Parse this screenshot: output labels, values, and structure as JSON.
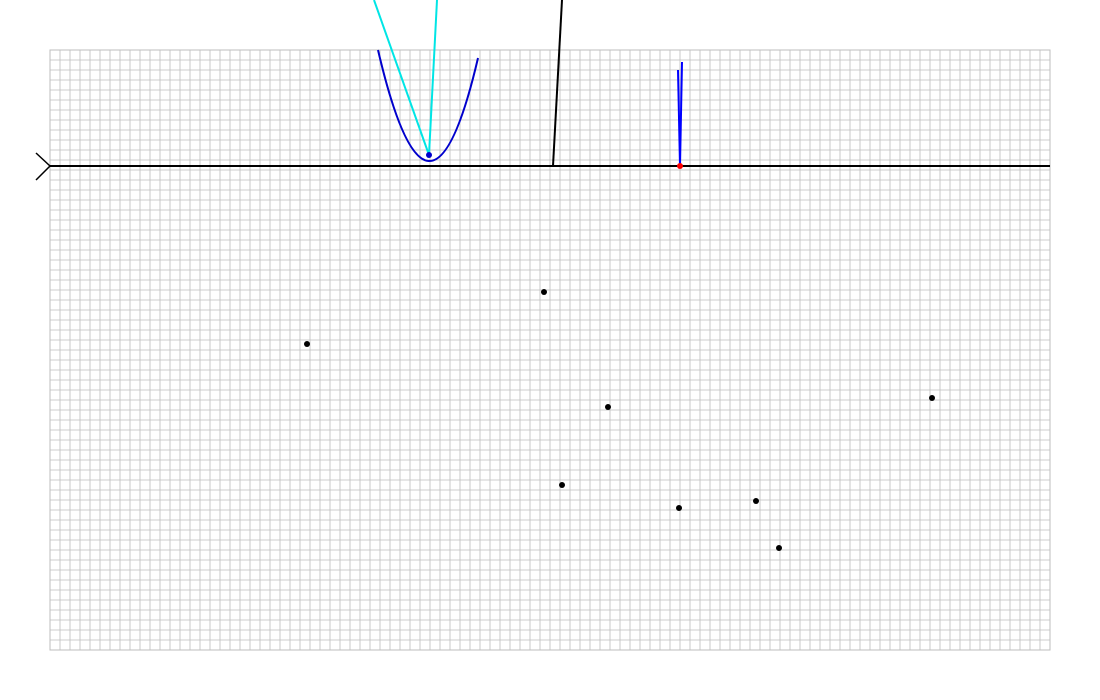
{
  "colors": {
    "background": "#ffffff",
    "grid_line": "#bdbdbd",
    "axis": "#000000",
    "parabola": "#0000cc",
    "ray": "#00e5e5",
    "thin_curve": "#0000ff",
    "marker": "#ff0000",
    "point": "#000000",
    "focus_point": "#0000cc"
  },
  "diagram": {
    "grid": true,
    "axis_arrow": "chevron-left",
    "scatter_point_count": 8
  }
}
